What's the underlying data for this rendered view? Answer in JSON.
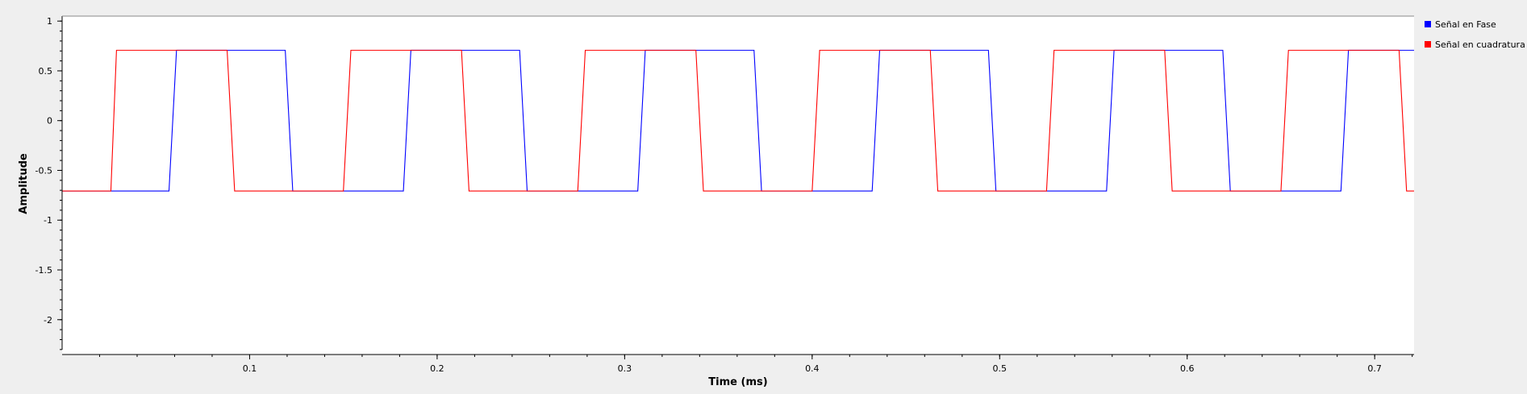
{
  "chart_data": {
    "type": "line",
    "title": "",
    "xlabel": "Time (ms)",
    "ylabel": "Amplitude",
    "xlim": [
      0.0,
      0.721
    ],
    "ylim": [
      -2.35,
      1.05
    ],
    "xticks": [
      0.1,
      0.2,
      0.3,
      0.4,
      0.5,
      0.6,
      0.7
    ],
    "xtick_labels": [
      "0.1",
      "0.2",
      "0.3",
      "0.4",
      "0.5",
      "0.6",
      "0.7"
    ],
    "yticks": [
      1,
      0.5,
      0,
      -0.5,
      -1,
      -1.5,
      -2
    ],
    "ytick_labels": [
      "1",
      "0.5",
      "0",
      "-0.5",
      "-1",
      "-1.5",
      "-2"
    ],
    "grid": false,
    "legend_position": "right",
    "series": [
      {
        "name": "Señal en Fase",
        "color": "#0000ff",
        "x": [
          0.0,
          0.057,
          0.061,
          0.119,
          0.123,
          0.182,
          0.186,
          0.244,
          0.248,
          0.307,
          0.311,
          0.369,
          0.373,
          0.432,
          0.436,
          0.494,
          0.498,
          0.557,
          0.561,
          0.619,
          0.623,
          0.682,
          0.686,
          0.721
        ],
        "values": [
          -0.707,
          -0.707,
          0.707,
          0.707,
          -0.707,
          -0.707,
          0.707,
          0.707,
          -0.707,
          -0.707,
          0.707,
          0.707,
          -0.707,
          -0.707,
          0.707,
          0.707,
          -0.707,
          -0.707,
          0.707,
          0.707,
          -0.707,
          -0.707,
          0.707,
          0.707
        ]
      },
      {
        "name": "Señal en cuadratura",
        "color": "#ff0000",
        "x": [
          0.0,
          0.026,
          0.029,
          0.088,
          0.092,
          0.15,
          0.154,
          0.213,
          0.217,
          0.275,
          0.279,
          0.338,
          0.342,
          0.4,
          0.404,
          0.463,
          0.467,
          0.525,
          0.529,
          0.588,
          0.592,
          0.65,
          0.654,
          0.713,
          0.717,
          0.721
        ],
        "values": [
          -0.707,
          -0.707,
          0.707,
          0.707,
          -0.707,
          -0.707,
          0.707,
          0.707,
          -0.707,
          -0.707,
          0.707,
          0.707,
          -0.707,
          -0.707,
          0.707,
          0.707,
          -0.707,
          -0.707,
          0.707,
          0.707,
          -0.707,
          -0.707,
          0.707,
          0.707,
          -0.707,
          -0.707
        ]
      }
    ]
  }
}
